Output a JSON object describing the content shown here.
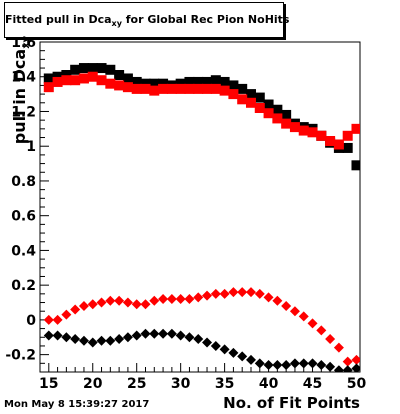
{
  "chart_data": {
    "type": "scatter",
    "title_parts": {
      "main": "Fitted pull in Dca",
      "sub": "xy",
      "rest": " for Global Rec Pion NoHits"
    },
    "xlabel": "No. of Fit Points",
    "ylabel_parts": {
      "main": "pull in Dca",
      "sub": "xy"
    },
    "xlim": [
      14,
      50.4
    ],
    "ylim": [
      -0.3,
      1.6
    ],
    "x_ticks": [
      15,
      20,
      25,
      30,
      35,
      40,
      45,
      50
    ],
    "y_ticks": [
      "-0.2",
      "0",
      "0.2",
      "0.4",
      "0.6",
      "0.8",
      "1",
      "1.2",
      "1.4",
      "1.6"
    ],
    "grid": false,
    "series": [
      {
        "marker": "square",
        "color": "#000000",
        "x": [
          15,
          16,
          17,
          18,
          19,
          20,
          21,
          22,
          23,
          24,
          25,
          26,
          27,
          28,
          29,
          30,
          31,
          32,
          33,
          34,
          35,
          36,
          37,
          38,
          39,
          40,
          41,
          42,
          43,
          44,
          45,
          46,
          47,
          48,
          49,
          50
        ],
        "y": [
          1.39,
          1.4,
          1.41,
          1.44,
          1.45,
          1.45,
          1.45,
          1.44,
          1.41,
          1.39,
          1.37,
          1.36,
          1.36,
          1.36,
          1.35,
          1.36,
          1.37,
          1.37,
          1.37,
          1.38,
          1.37,
          1.35,
          1.33,
          1.3,
          1.28,
          1.24,
          1.21,
          1.18,
          1.13,
          1.11,
          1.1,
          1.06,
          1.02,
          0.99,
          0.99,
          0.89
        ]
      },
      {
        "marker": "square",
        "color": "#ff0000",
        "x": [
          15,
          16,
          17,
          18,
          19,
          20,
          21,
          22,
          23,
          24,
          25,
          26,
          27,
          28,
          29,
          30,
          31,
          32,
          33,
          34,
          35,
          36,
          37,
          38,
          39,
          40,
          41,
          42,
          43,
          44,
          45,
          46,
          47,
          48,
          49,
          50
        ],
        "y": [
          1.34,
          1.37,
          1.38,
          1.38,
          1.39,
          1.4,
          1.38,
          1.36,
          1.35,
          1.34,
          1.33,
          1.33,
          1.32,
          1.33,
          1.33,
          1.33,
          1.33,
          1.33,
          1.33,
          1.33,
          1.32,
          1.3,
          1.27,
          1.25,
          1.22,
          1.19,
          1.16,
          1.13,
          1.11,
          1.09,
          1.08,
          1.06,
          1.03,
          1.01,
          1.06,
          1.1
        ]
      },
      {
        "marker": "diamond",
        "color": "#ff0000",
        "x": [
          15,
          16,
          17,
          18,
          19,
          20,
          21,
          22,
          23,
          24,
          25,
          26,
          27,
          28,
          29,
          30,
          31,
          32,
          33,
          34,
          35,
          36,
          37,
          38,
          39,
          40,
          41,
          42,
          43,
          44,
          45,
          46,
          47,
          48,
          49,
          50
        ],
        "y": [
          0.0,
          0.0,
          0.03,
          0.06,
          0.08,
          0.09,
          0.1,
          0.11,
          0.11,
          0.1,
          0.09,
          0.09,
          0.11,
          0.12,
          0.12,
          0.12,
          0.12,
          0.13,
          0.14,
          0.15,
          0.15,
          0.16,
          0.16,
          0.16,
          0.15,
          0.13,
          0.11,
          0.08,
          0.05,
          0.02,
          -0.02,
          -0.06,
          -0.11,
          -0.16,
          -0.24,
          -0.23
        ]
      },
      {
        "marker": "diamond",
        "color": "#000000",
        "x": [
          15,
          16,
          17,
          18,
          19,
          20,
          21,
          22,
          23,
          24,
          25,
          26,
          27,
          28,
          29,
          30,
          31,
          32,
          33,
          34,
          35,
          36,
          37,
          38,
          39,
          40,
          41,
          42,
          43,
          44,
          45,
          46,
          47,
          48,
          49,
          50
        ],
        "y": [
          -0.09,
          -0.09,
          -0.1,
          -0.11,
          -0.12,
          -0.13,
          -0.12,
          -0.12,
          -0.11,
          -0.1,
          -0.09,
          -0.08,
          -0.08,
          -0.08,
          -0.08,
          -0.09,
          -0.1,
          -0.11,
          -0.13,
          -0.15,
          -0.17,
          -0.19,
          -0.21,
          -0.23,
          -0.25,
          -0.26,
          -0.26,
          -0.26,
          -0.25,
          -0.25,
          -0.25,
          -0.26,
          -0.27,
          -0.29,
          -0.29,
          -0.28
        ]
      }
    ]
  },
  "date_stamp": "Mon May  8 15:39:27 2017"
}
